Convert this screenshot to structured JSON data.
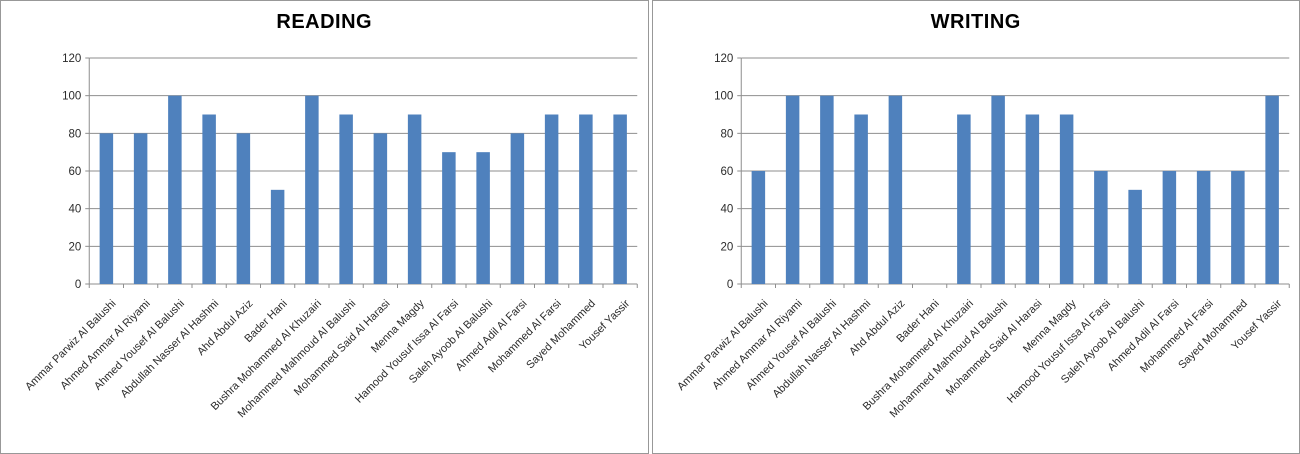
{
  "page": {
    "description": "Two side-by-side bar charts of student scores"
  },
  "colors": {
    "bar": "#4F81BD",
    "gridline": "#8E8E8E",
    "axis": "#8E8E8E",
    "tick_label": "#2B2B2B",
    "title": "#000000",
    "panel_border": "#989898",
    "background": "#FFFFFF"
  },
  "chart_data": [
    {
      "type": "bar",
      "title": "READING",
      "categories": [
        "Ammar Parwiz Al Balushi",
        "Ahmed Ammar Al Riyami",
        "Ahmed Yousef Al Balushi",
        "Abdullah Nasser Al Hashmi",
        "Ahd Abdul Aziz",
        "Bader Hani",
        "Bushra Mohammed Al Khuzairi",
        "Mohammed Mahmoud Al Balushi",
        "Mohammed Said Al Harasi",
        "Menna Magdy",
        "Hamood Yousuf Issa Al Farsi",
        "Saleh Ayoob Al Balushi",
        "Ahmed Adil Al Farsi",
        "Mohammed Al Farsi",
        "Sayed Mohammed",
        "Yousef Yassir"
      ],
      "values": [
        80,
        80,
        100,
        90,
        80,
        50,
        100,
        90,
        80,
        90,
        70,
        70,
        80,
        90,
        90,
        90
      ],
      "xlabel": "",
      "ylabel": "",
      "ylim": [
        0,
        120
      ],
      "ytick_step": 20,
      "yticks": [
        0,
        20,
        40,
        60,
        80,
        100,
        120
      ],
      "grid": true,
      "legend": false,
      "x_label_rotation_deg": -45
    },
    {
      "type": "bar",
      "title": "WRITING",
      "categories": [
        "Ammar Parwiz Al Balushi",
        "Ahmed Ammar Al Riyami",
        "Ahmed Yousef Al Balushi",
        "Abdullah Nasser Al Hashmi",
        "Ahd Abdul Aziz",
        "Bader Hani",
        "Bushra Mohammed Al Khuzairi",
        "Mohammed Mahmoud Al Balushi",
        "Mohammed Said Al Harasi",
        "Menna Magdy",
        "Hamood Yousuf Issa Al Farsi",
        "Saleh Ayoob Al Balushi",
        "Ahmed Adil Al Farsi",
        "Mohammed Al Farsi",
        "Sayed Mohammed",
        "Yousef Yassir"
      ],
      "values": [
        60,
        100,
        100,
        90,
        100,
        0,
        90,
        100,
        90,
        90,
        60,
        50,
        60,
        60,
        60,
        100
      ],
      "xlabel": "",
      "ylabel": "",
      "ylim": [
        0,
        120
      ],
      "ytick_step": 20,
      "yticks": [
        0,
        20,
        40,
        60,
        80,
        100,
        120
      ],
      "grid": true,
      "legend": false,
      "x_label_rotation_deg": -45
    }
  ]
}
